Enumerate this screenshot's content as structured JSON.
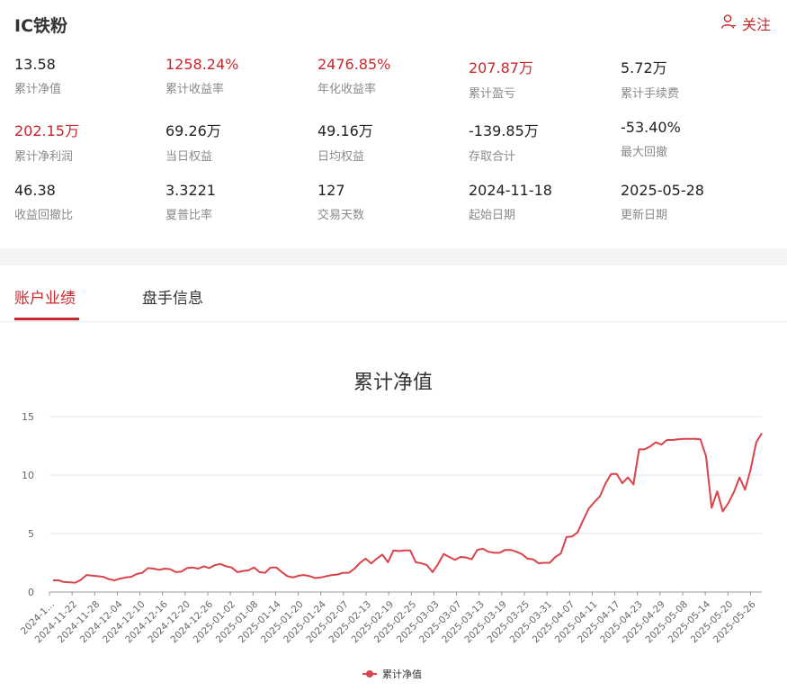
{
  "header": {
    "title": "IC铁粉",
    "follow_label": "关注",
    "follow_icon": "user-icon",
    "accent_color": "#c8282c"
  },
  "stats": [
    {
      "value": "13.58",
      "label": "累计净值",
      "highlight": false
    },
    {
      "value": "1258.24%",
      "label": "累计收益率",
      "highlight": true
    },
    {
      "value": "2476.85%",
      "label": "年化收益率",
      "highlight": true
    },
    {
      "value": "207.87万",
      "label": "累计盈亏",
      "highlight": true
    },
    {
      "value": "5.72万",
      "label": "累计手续费",
      "highlight": false
    },
    {
      "value": "202.15万",
      "label": "累计净利润",
      "highlight": true
    },
    {
      "value": "69.26万",
      "label": "当日权益",
      "highlight": false
    },
    {
      "value": "49.16万",
      "label": "日均权益",
      "highlight": false
    },
    {
      "value": "-139.85万",
      "label": "存取合计",
      "highlight": false
    },
    {
      "value": "-53.40%",
      "label": "最大回撤",
      "highlight": false
    },
    {
      "value": "46.38",
      "label": "收益回撤比",
      "highlight": false
    },
    {
      "value": "3.3221",
      "label": "夏普比率",
      "highlight": false
    },
    {
      "value": "127",
      "label": "交易天数",
      "highlight": false
    },
    {
      "value": "2024-11-18",
      "label": "起始日期",
      "highlight": false
    },
    {
      "value": "2025-05-28",
      "label": "更新日期",
      "highlight": false
    }
  ],
  "tabs": [
    {
      "label": "账户业绩",
      "active": true
    },
    {
      "label": "盘手信息",
      "active": false
    }
  ],
  "chart_data": {
    "type": "line",
    "title": "累计净值",
    "ylim": [
      0,
      15
    ],
    "yticks": [
      "0",
      "5",
      "10",
      "15"
    ],
    "x_tick_labels": [
      "2024-1…",
      "2024-11-22",
      "2024-11-28",
      "2024-12-04",
      "2024-12-10",
      "2024-12-16",
      "2024-12-20",
      "2024-12-26",
      "2025-01-02",
      "2025-01-08",
      "2025-01-14",
      "2025-01-20",
      "2025-01-24",
      "2025-02-07",
      "2025-02-13",
      "2025-02-19",
      "2025-02-25",
      "2025-03-03",
      "2025-03-07",
      "2025-03-13",
      "2025-03-19",
      "2025-03-25",
      "2025-03-31",
      "2025-04-07",
      "2025-04-11",
      "2025-04-17",
      "2025-04-23",
      "2025-04-29",
      "2025-05-08",
      "2025-05-14",
      "2025-05-20",
      "2025-05-26"
    ],
    "grid": true,
    "legend_position": "bottom-center",
    "series": [
      {
        "name": "累计净值",
        "color": "#d9434a",
        "values": [
          1.0,
          1.0,
          0.85,
          0.82,
          0.8,
          1.05,
          1.45,
          1.4,
          1.35,
          1.3,
          1.1,
          1.0,
          1.15,
          1.25,
          1.3,
          1.55,
          1.65,
          2.05,
          2.0,
          1.9,
          2.0,
          1.95,
          1.7,
          1.75,
          2.05,
          2.1,
          2.0,
          2.2,
          2.05,
          2.3,
          2.4,
          2.2,
          2.1,
          1.7,
          1.8,
          1.85,
          2.1,
          1.7,
          1.65,
          2.1,
          2.1,
          1.7,
          1.35,
          1.25,
          1.4,
          1.45,
          1.35,
          1.2,
          1.25,
          1.35,
          1.45,
          1.5,
          1.65,
          1.65,
          2.0,
          2.5,
          2.85,
          2.45,
          2.85,
          3.2,
          2.55,
          3.55,
          3.5,
          3.55,
          3.55,
          2.55,
          2.45,
          2.3,
          1.7,
          2.4,
          3.25,
          3.0,
          2.75,
          3.0,
          2.95,
          2.8,
          3.6,
          3.7,
          3.45,
          3.35,
          3.35,
          3.6,
          3.6,
          3.45,
          3.25,
          2.85,
          2.8,
          2.45,
          2.5,
          2.5,
          3.0,
          3.3,
          4.7,
          4.75,
          5.1,
          6.15,
          7.15,
          7.7,
          8.2,
          9.3,
          10.1,
          10.1,
          9.3,
          9.8,
          9.2,
          12.2,
          12.2,
          12.45,
          12.8,
          12.6,
          13.0,
          13.0,
          13.05,
          13.1,
          13.1,
          13.1,
          13.05,
          11.6,
          7.2,
          8.6,
          6.9,
          7.6,
          8.55,
          9.8,
          8.75,
          10.5,
          12.8,
          13.58
        ]
      }
    ]
  }
}
